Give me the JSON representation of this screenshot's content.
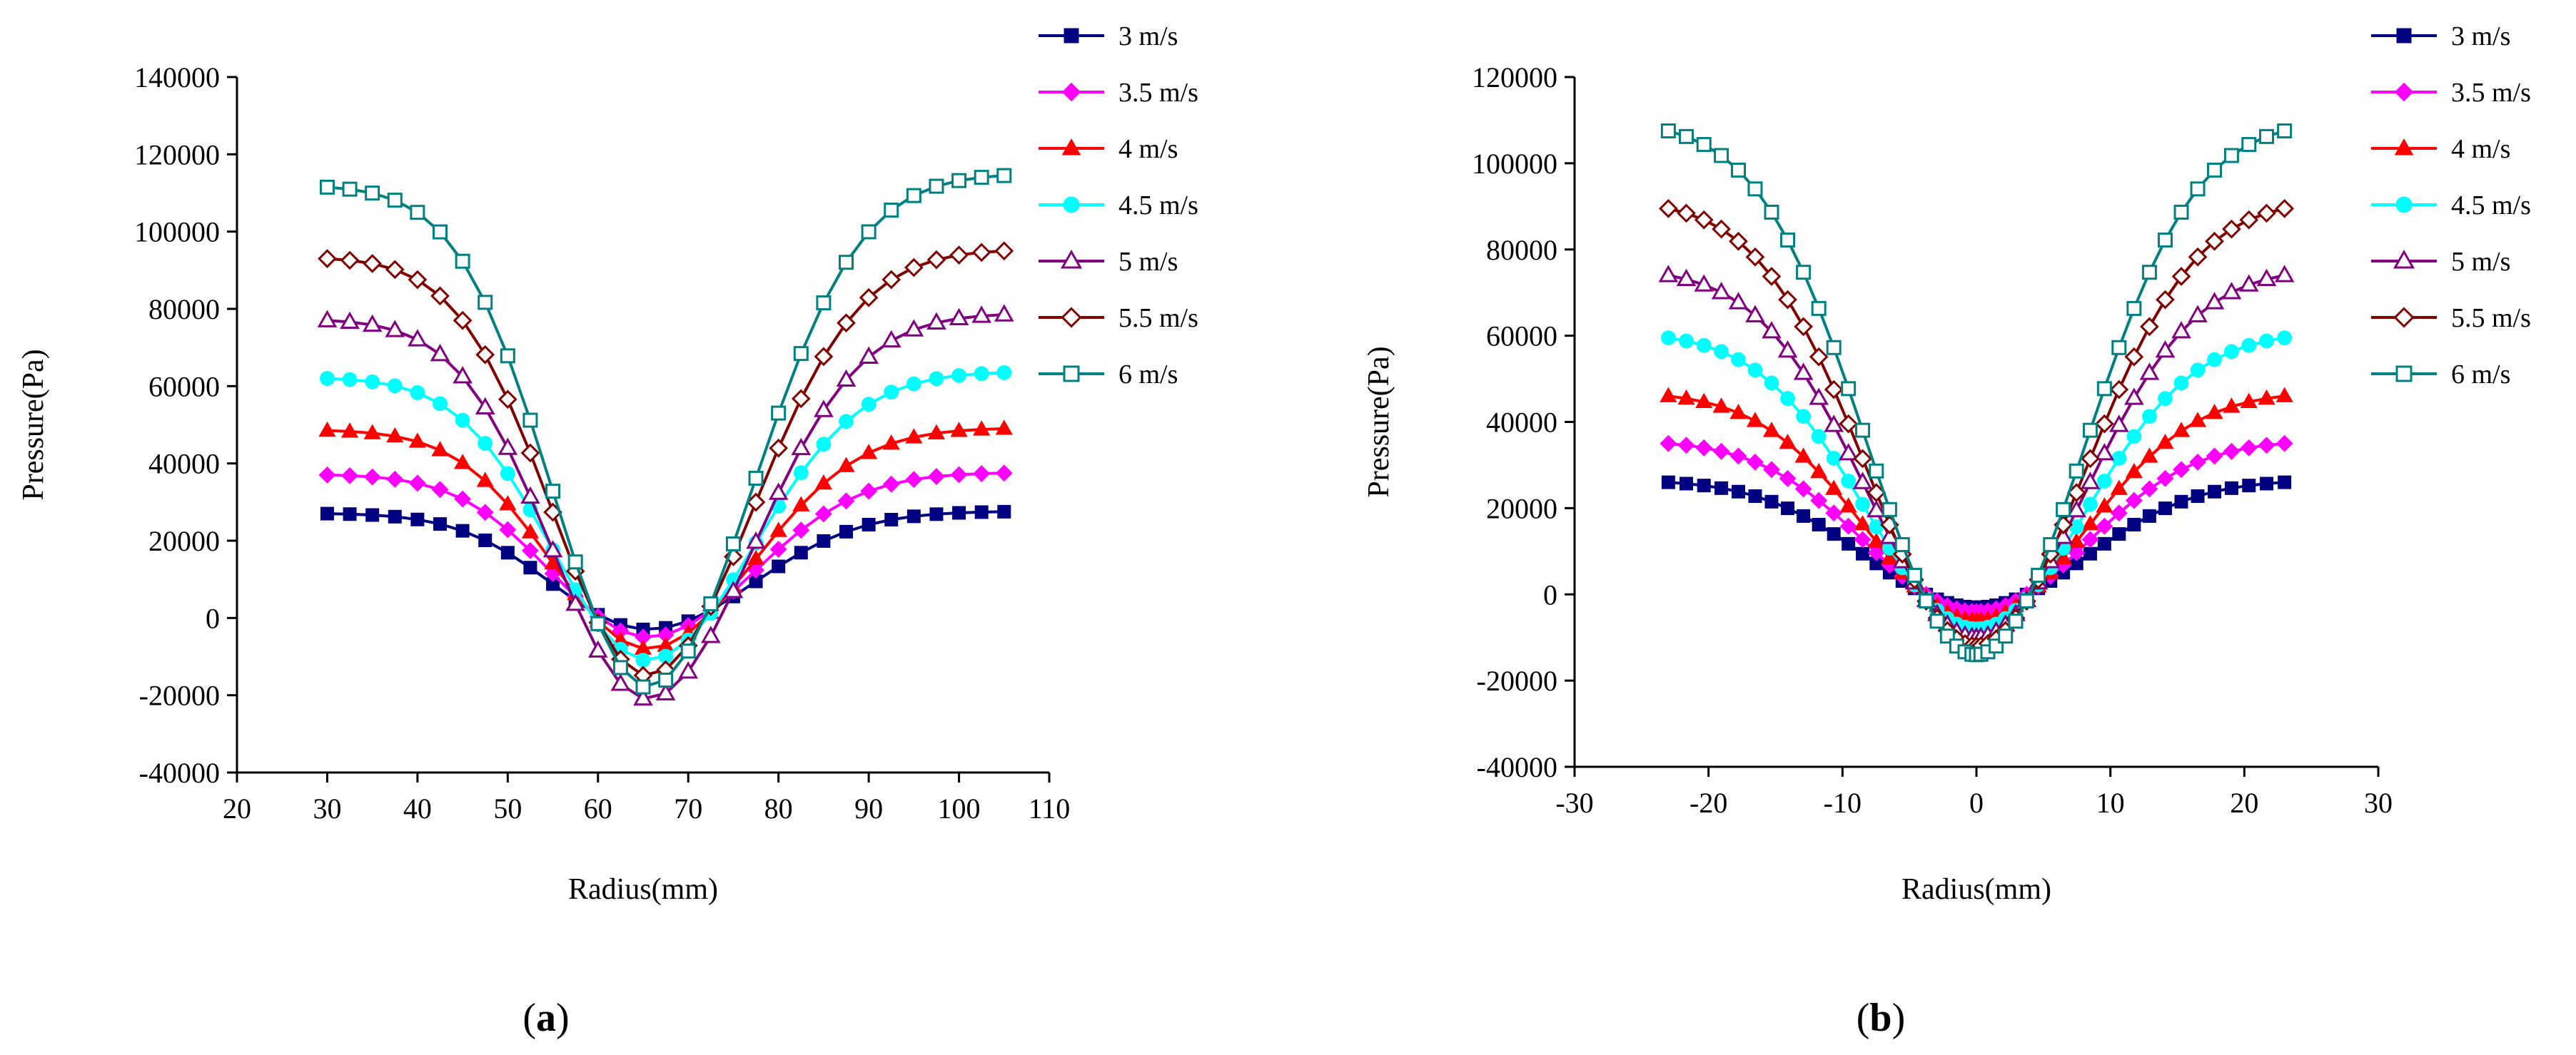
{
  "panel_labels": {
    "a_open": "(",
    "a_letter": "a",
    "a_close": ")",
    "b_open": "(",
    "b_letter": "b",
    "b_close": ")"
  },
  "chart_data": [
    {
      "type": "line",
      "id": "a",
      "title": "",
      "xlabel": "Radius(mm)",
      "ylabel": "Pressure(Pa)",
      "xlim": [
        20,
        110
      ],
      "ylim": [
        -40000,
        140000
      ],
      "xticks": [
        "20",
        "30",
        "40",
        "50",
        "60",
        "70",
        "80",
        "90",
        "100",
        "110"
      ],
      "yticks": [
        "-40000",
        "-20000",
        "0",
        "20000",
        "40000",
        "60000",
        "80000",
        "100000",
        "120000",
        "140000"
      ],
      "legend_position": "top-right",
      "series": [
        {
          "name": "3 m/s",
          "color": "#000080",
          "marker": "square-filled",
          "peak_left": 27000,
          "peak_right": 27500,
          "min": -3000
        },
        {
          "name": "3.5 m/s",
          "color": "#ff00ff",
          "marker": "diamond-filled",
          "peak_left": 37000,
          "peak_right": 37500,
          "min": -5000
        },
        {
          "name": "4 m/s",
          "color": "#ff0000",
          "marker": "triangle-filled",
          "peak_left": 48500,
          "peak_right": 49000,
          "min": -8000
        },
        {
          "name": "4.5 m/s",
          "color": "#00ffff",
          "marker": "circle-filled",
          "peak_left": 62000,
          "peak_right": 63500,
          "min": -11000
        },
        {
          "name": "5 m/s",
          "color": "#800080",
          "marker": "triangle-open",
          "peak_left": 77000,
          "peak_right": 78500,
          "min": -21000
        },
        {
          "name": "5.5 m/s",
          "color": "#800000",
          "marker": "diamond-open",
          "peak_left": 93000,
          "peak_right": 95000,
          "min": -15000
        },
        {
          "name": "6 m/s",
          "color": "#008080",
          "marker": "square-open",
          "peak_left": 111500,
          "peak_right": 114500,
          "min": -18000
        }
      ]
    },
    {
      "type": "line",
      "id": "b",
      "title": "",
      "xlabel": "Radius(mm)",
      "ylabel": "Pressure(Pa)",
      "xlim": [
        -30,
        30
      ],
      "ylim": [
        -40000,
        120000
      ],
      "xticks": [
        "-30",
        "-20",
        "-10",
        "0",
        "10",
        "20",
        "30"
      ],
      "yticks": [
        "-40000",
        "-20000",
        "0",
        "20000",
        "40000",
        "60000",
        "80000",
        "100000",
        "120000"
      ],
      "legend_position": "top-right",
      "series": [
        {
          "name": "3 m/s",
          "color": "#000080",
          "marker": "square-filled",
          "peak": 26000,
          "min": -3000
        },
        {
          "name": "3.5 m/s",
          "color": "#ff00ff",
          "marker": "diamond-filled",
          "peak": 35000,
          "min": -4000
        },
        {
          "name": "4 m/s",
          "color": "#ff0000",
          "marker": "triangle-filled",
          "peak": 46000,
          "min": -6000
        },
        {
          "name": "4.5 m/s",
          "color": "#00ffff",
          "marker": "circle-filled",
          "peak": 59500,
          "min": -8000
        },
        {
          "name": "5 m/s",
          "color": "#800080",
          "marker": "triangle-open",
          "peak": 74000,
          "min": -10000
        },
        {
          "name": "5.5 m/s",
          "color": "#800000",
          "marker": "diamond-open",
          "peak": 89500,
          "min": -12000
        },
        {
          "name": "6 m/s",
          "color": "#008080",
          "marker": "square-open",
          "peak": 107500,
          "min": -14000
        }
      ]
    }
  ]
}
